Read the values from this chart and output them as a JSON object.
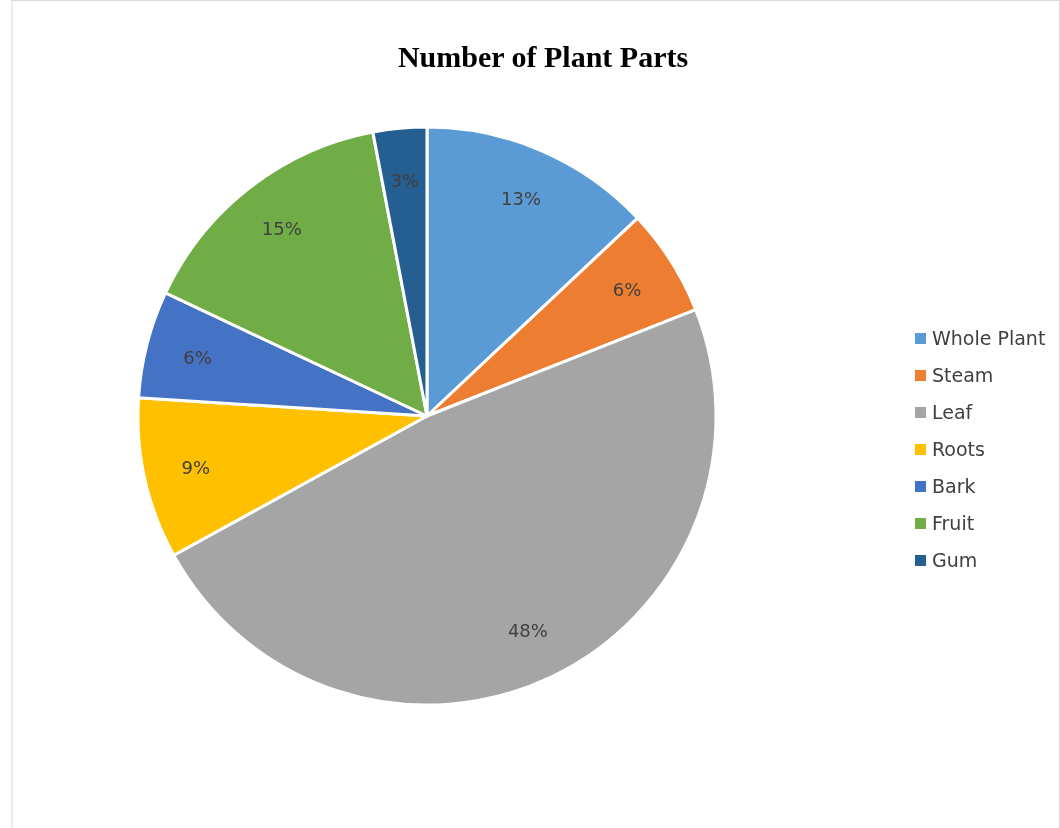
{
  "chart_data": {
    "type": "pie",
    "title": "Number of Plant Parts",
    "categories": [
      "Whole Plant",
      "Steam",
      "Leaf",
      "Roots",
      "Bark",
      "Fruit",
      "Gum"
    ],
    "values": [
      13,
      6,
      48,
      9,
      6,
      15,
      3
    ],
    "colors": [
      "#5b9bd5",
      "#ed7d31",
      "#a5a5a5",
      "#ffc000",
      "#4472c4",
      "#70ad47",
      "#255e91"
    ],
    "value_labels": [
      "13%",
      "6%",
      "48%",
      "9%",
      "6%",
      "15%",
      "3%"
    ],
    "legend": "right"
  }
}
